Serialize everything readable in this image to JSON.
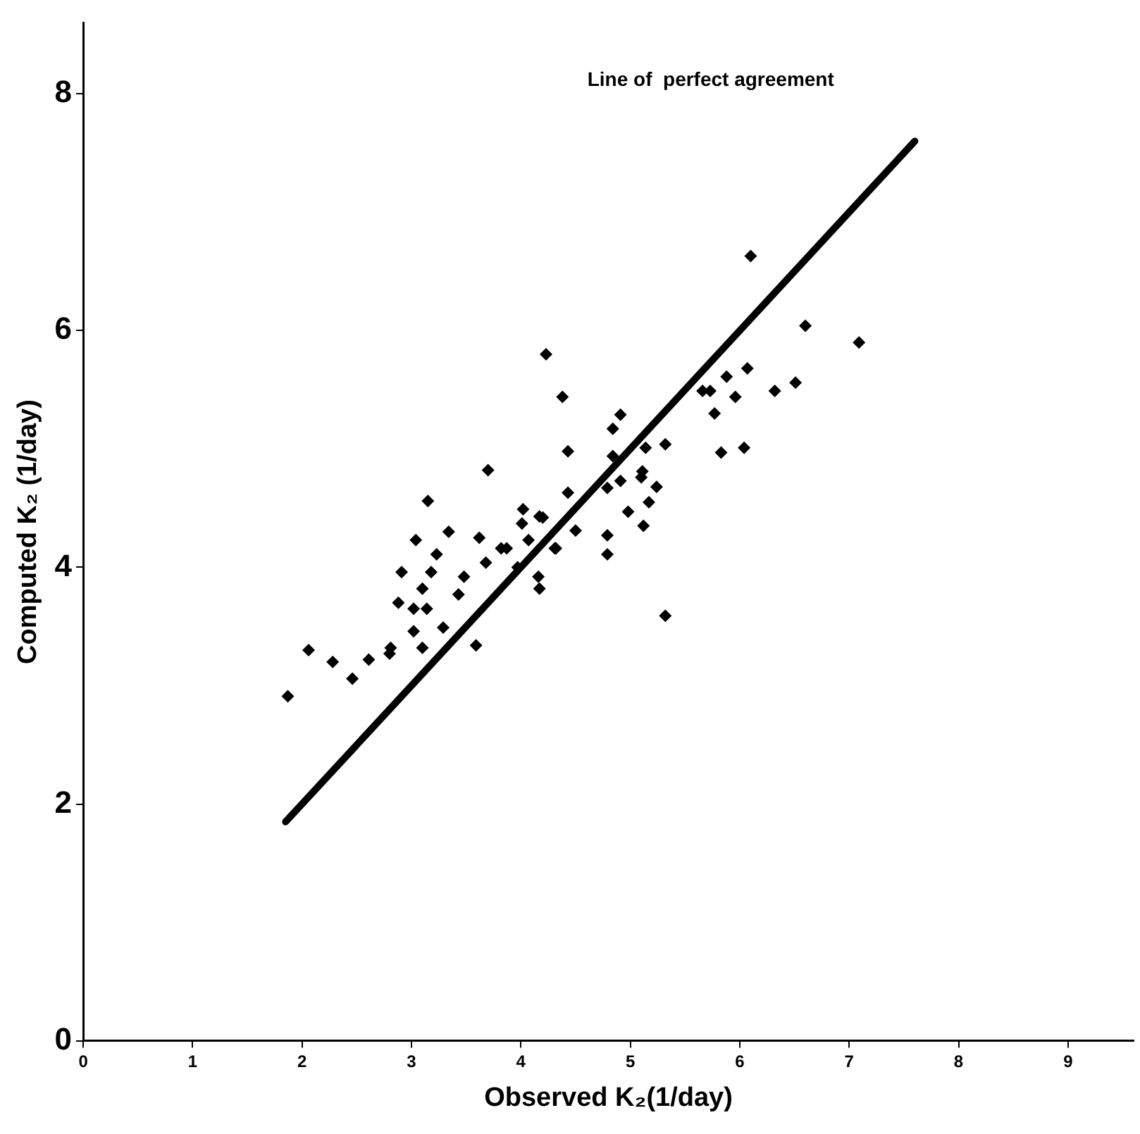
{
  "chart_data": {
    "type": "scatter",
    "xlabel": "Observed K₂(1/day)",
    "ylabel": "Computed K₂ (1/day)",
    "annotations": [
      "Line of  perfect agreement"
    ],
    "xlim": [
      0,
      9.6
    ],
    "ylim": [
      0,
      8.6
    ],
    "xticks": [
      0,
      1,
      2,
      3,
      4,
      5,
      6,
      7,
      8,
      9
    ],
    "yticks": [
      0,
      2,
      4,
      6,
      8
    ],
    "grid": false,
    "legend": false,
    "marker": "diamond",
    "series": [
      {
        "color": "#000000",
        "x": [
          1.87,
          2.06,
          2.28,
          2.46,
          2.61,
          2.81,
          2.8,
          3.1,
          3.02,
          3.29,
          3.59,
          2.88,
          3.02,
          3.14,
          2.91,
          3.1,
          3.18,
          3.23,
          3.04,
          3.15,
          3.34,
          3.43,
          3.48,
          3.62,
          3.68,
          3.7,
          3.82,
          3.87,
          4.02,
          4.01,
          4.07,
          4.17,
          4.16,
          4.17,
          4.31,
          3.97,
          4.23,
          4.38,
          4.43,
          4.43,
          4.5,
          4.32,
          4.2,
          4.79,
          4.79,
          4.98,
          5.12,
          5.17,
          5.24,
          5.11,
          5.1,
          4.91,
          4.79,
          4.84,
          4.84,
          4.91,
          5.14,
          5.32,
          5.32,
          5.83,
          6.04,
          5.77,
          5.96,
          5.66,
          5.73,
          5.88,
          6.07,
          6.32,
          6.51,
          6.6,
          7.09,
          6.1
        ],
        "values": [
          2.91,
          3.3,
          3.2,
          3.06,
          3.22,
          3.32,
          3.27,
          3.32,
          3.46,
          3.49,
          3.34,
          3.7,
          3.65,
          3.65,
          3.96,
          3.82,
          3.96,
          4.11,
          4.23,
          4.56,
          4.3,
          3.77,
          3.92,
          4.25,
          4.04,
          4.82,
          4.16,
          4.16,
          4.49,
          4.37,
          4.23,
          4.43,
          3.92,
          3.82,
          4.16,
          4.0,
          5.8,
          5.44,
          4.98,
          4.63,
          4.31,
          4.16,
          4.42,
          4.27,
          4.11,
          4.47,
          4.35,
          4.55,
          4.68,
          4.81,
          4.76,
          4.73,
          4.67,
          4.94,
          5.17,
          5.29,
          5.01,
          5.04,
          3.59,
          4.97,
          5.01,
          5.3,
          5.44,
          5.49,
          5.49,
          5.61,
          5.68,
          5.49,
          5.56,
          6.04,
          5.9,
          6.63
        ]
      },
      {
        "type": "line",
        "color": "#000000",
        "marker": "none",
        "line_style": "solid",
        "x": [
          1.85,
          7.6
        ],
        "values": [
          1.85,
          7.6
        ]
      }
    ]
  }
}
